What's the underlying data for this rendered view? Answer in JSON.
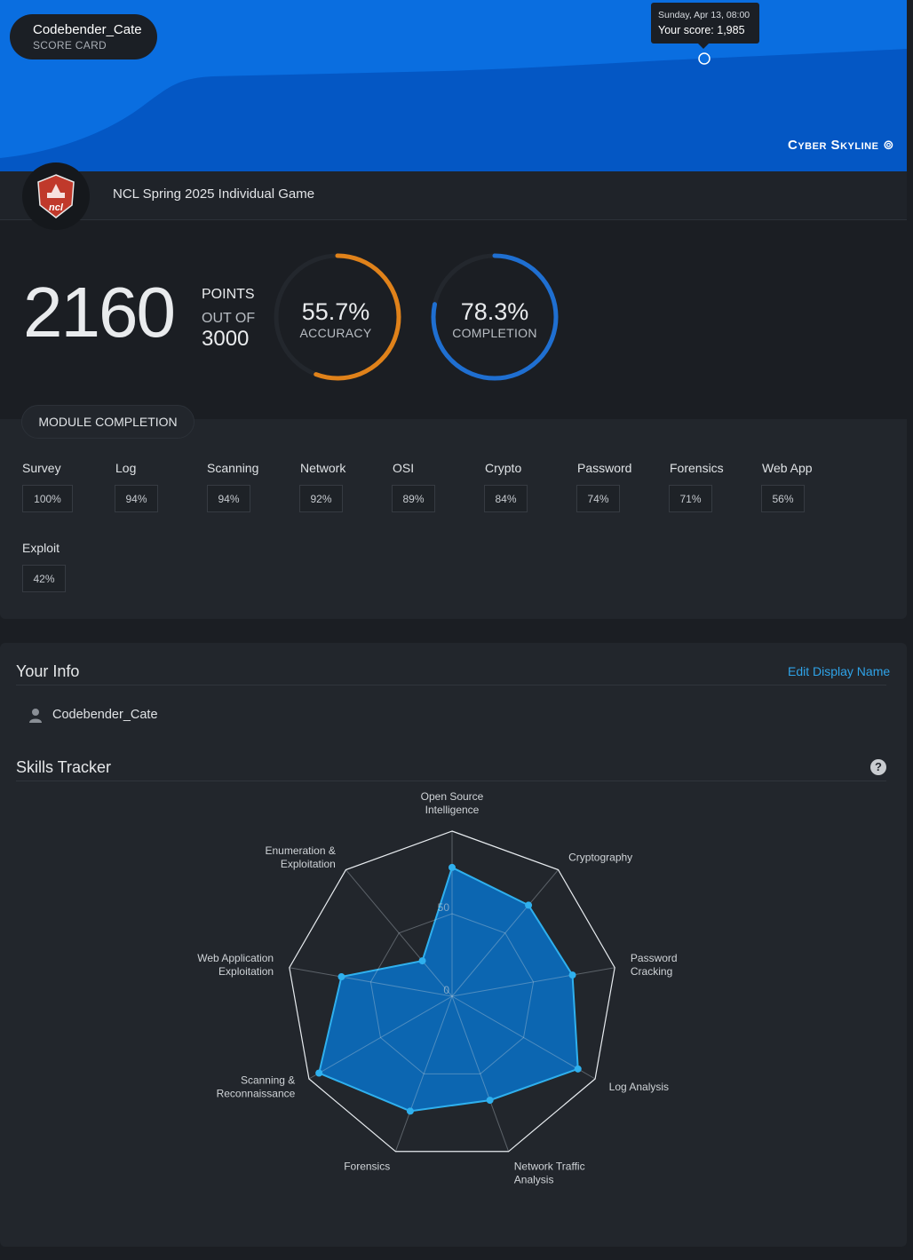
{
  "header": {
    "username": "Codebender_Cate",
    "subtitle": "SCORE CARD",
    "tooltip_date": "Sunday, Apr 13, 08:00",
    "tooltip_score": "Your score: 1,985",
    "brand": "Cyber Skyline"
  },
  "game": {
    "title": "NCL Spring 2025 Individual Game"
  },
  "score": {
    "points": "2160",
    "points_label": "POINTS",
    "out_of_label": "OUT OF",
    "total": "3000",
    "accuracy_value": "55.7%",
    "accuracy_label": "ACCURACY",
    "accuracy_fraction": 0.557,
    "accuracy_color": "#e0821a",
    "completion_value": "78.3%",
    "completion_label": "COMPLETION",
    "completion_fraction": 0.783,
    "completion_color": "#1f6fd1"
  },
  "modules": {
    "title": "MODULE COMPLETION",
    "items": [
      {
        "name": "Survey",
        "pct": "100%"
      },
      {
        "name": "Log",
        "pct": "94%"
      },
      {
        "name": "Scanning",
        "pct": "94%"
      },
      {
        "name": "Network",
        "pct": "92%"
      },
      {
        "name": "OSI",
        "pct": "89%"
      },
      {
        "name": "Crypto",
        "pct": "84%"
      },
      {
        "name": "Password",
        "pct": "74%"
      },
      {
        "name": "Forensics",
        "pct": "71%"
      },
      {
        "name": "Web App",
        "pct": "56%"
      },
      {
        "name": "Exploit",
        "pct": "42%"
      }
    ]
  },
  "info": {
    "title": "Your Info",
    "edit_label": "Edit Display Name",
    "display_name": "Codebender_Cate"
  },
  "skills": {
    "title": "Skills Tracker",
    "help_icon": "?"
  },
  "chart_data": {
    "type": "radar",
    "axis_ticks": [
      "0",
      "50"
    ],
    "rmax": 100,
    "axes": [
      {
        "label": [
          "Open Source",
          "Intelligence"
        ],
        "value": 78
      },
      {
        "label": [
          "Cryptography"
        ],
        "value": 72
      },
      {
        "label": [
          "Password",
          "Cracking"
        ],
        "value": 74
      },
      {
        "label": [
          "Log Analysis"
        ],
        "value": 88
      },
      {
        "label": [
          "Network Traffic",
          "Analysis"
        ],
        "value": 67
      },
      {
        "label": [
          "Forensics"
        ],
        "value": 74
      },
      {
        "label": [
          "Scanning &",
          "Reconnaissance"
        ],
        "value": 93
      },
      {
        "label": [
          "Web Application",
          "Exploitation"
        ],
        "value": 68
      },
      {
        "label": [
          "Enumeration &",
          "Exploitation"
        ],
        "value": 28
      }
    ]
  }
}
